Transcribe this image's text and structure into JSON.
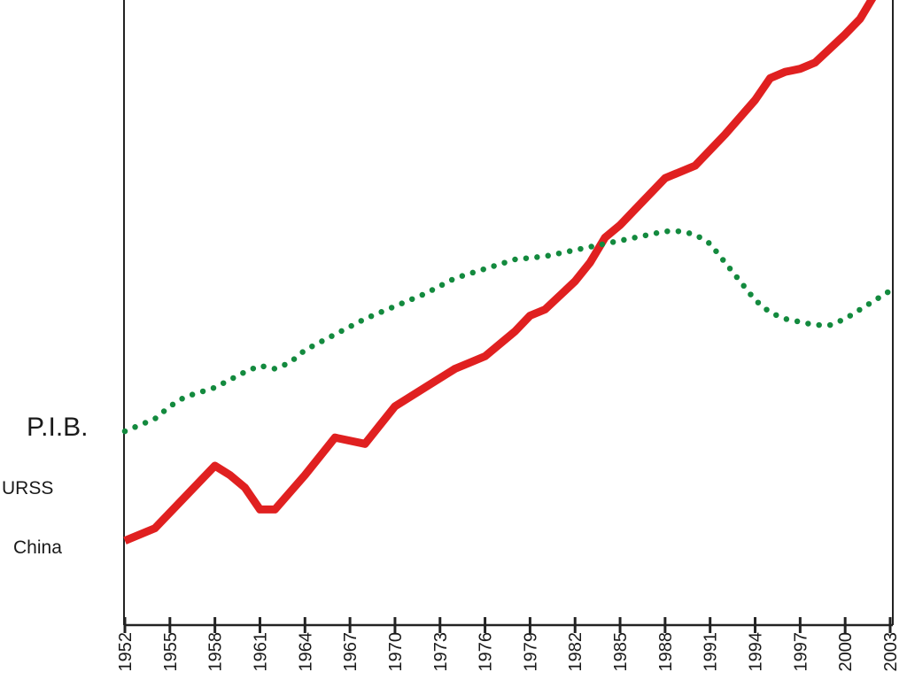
{
  "chart_data": {
    "type": "line",
    "title": "P.I.B.",
    "xlabel": "",
    "ylabel": "",
    "xlim": [
      1952,
      2003
    ],
    "ylim": [
      0,
      100
    ],
    "grid": false,
    "x_ticks": [
      "1952",
      "1955",
      "1958",
      "1961",
      "1964",
      "1967",
      "1970",
      "1973",
      "1976",
      "1979",
      "1982",
      "1985",
      "1988",
      "1991",
      "1994",
      "1997",
      "2000",
      "2003"
    ],
    "colors": {
      "China": "#e02020",
      "URSS": "#138a3e"
    },
    "series": [
      {
        "name": "China",
        "style": "solid-thick",
        "points": [
          [
            1952,
            13.5
          ],
          [
            1954,
            15.5
          ],
          [
            1956,
            20.5
          ],
          [
            1958,
            25.5
          ],
          [
            1959,
            24
          ],
          [
            1960,
            22
          ],
          [
            1961,
            18.5
          ],
          [
            1962,
            18.5
          ],
          [
            1964,
            24
          ],
          [
            1966,
            30
          ],
          [
            1968,
            29
          ],
          [
            1969,
            32
          ],
          [
            1970,
            35
          ],
          [
            1972,
            38
          ],
          [
            1974,
            41
          ],
          [
            1975,
            42
          ],
          [
            1976,
            43
          ],
          [
            1978,
            47
          ],
          [
            1979,
            49.5
          ],
          [
            1980,
            50.5
          ],
          [
            1982,
            55
          ],
          [
            1983,
            58
          ],
          [
            1984,
            62
          ],
          [
            1985,
            64
          ],
          [
            1986,
            66.5
          ],
          [
            1988,
            71.5
          ],
          [
            1990,
            73.5
          ],
          [
            1992,
            78.5
          ],
          [
            1994,
            84
          ],
          [
            1995,
            87.5
          ],
          [
            1996,
            88.5
          ],
          [
            1997,
            89
          ],
          [
            1998,
            90
          ],
          [
            2000,
            94.5
          ],
          [
            2001,
            97
          ],
          [
            2003,
            105
          ]
        ]
      },
      {
        "name": "URSS",
        "style": "dotted",
        "points": [
          [
            1952,
            31
          ],
          [
            1954,
            33
          ],
          [
            1955,
            35
          ],
          [
            1956,
            36.5
          ],
          [
            1958,
            38
          ],
          [
            1960,
            40.5
          ],
          [
            1961,
            41.5
          ],
          [
            1962,
            41
          ],
          [
            1963,
            42
          ],
          [
            1964,
            44
          ],
          [
            1966,
            46.5
          ],
          [
            1968,
            49
          ],
          [
            1970,
            51
          ],
          [
            1972,
            53
          ],
          [
            1974,
            55.5
          ],
          [
            1976,
            57
          ],
          [
            1978,
            58.5
          ],
          [
            1980,
            59
          ],
          [
            1982,
            60
          ],
          [
            1984,
            61
          ],
          [
            1986,
            62
          ],
          [
            1988,
            63
          ],
          [
            1989,
            63
          ],
          [
            1990,
            62.5
          ],
          [
            1991,
            61
          ],
          [
            1992,
            58
          ],
          [
            1993,
            55
          ],
          [
            1994,
            52
          ],
          [
            1995,
            50
          ],
          [
            1996,
            49
          ],
          [
            1997,
            48.5
          ],
          [
            1998,
            48
          ],
          [
            1999,
            48
          ],
          [
            2000,
            49
          ],
          [
            2001,
            50.5
          ],
          [
            2003,
            53.5
          ]
        ]
      }
    ]
  },
  "labels": {
    "title": "P.I.B.",
    "urss": "URSS",
    "china": "China"
  }
}
